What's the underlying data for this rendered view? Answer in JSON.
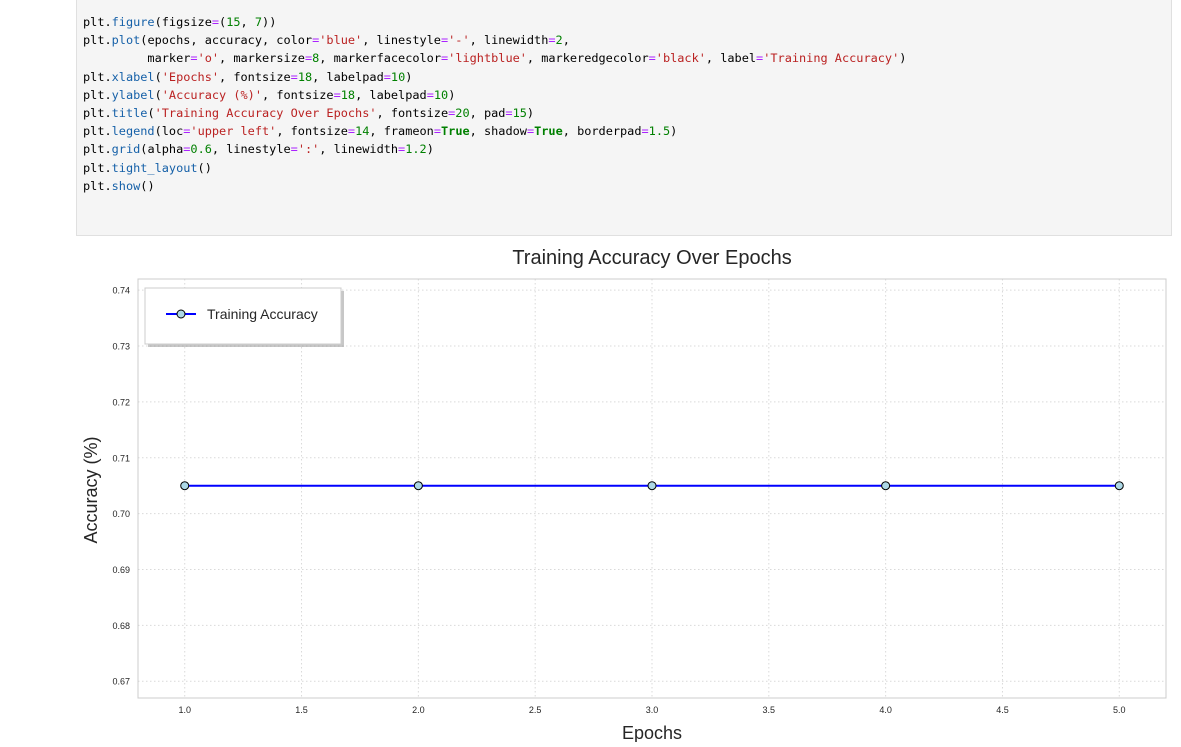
{
  "code_cell": {
    "lines": [
      [
        {
          "t": "plt.",
          "c": ""
        },
        {
          "t": "figure",
          "c": "fn"
        },
        {
          "t": "(figsize",
          "c": ""
        },
        {
          "t": "=",
          "c": "op"
        },
        {
          "t": "(",
          "c": ""
        },
        {
          "t": "15",
          "c": "num"
        },
        {
          "t": ", ",
          "c": ""
        },
        {
          "t": "7",
          "c": "num"
        },
        {
          "t": "))",
          "c": ""
        }
      ],
      [
        {
          "t": "plt.",
          "c": ""
        },
        {
          "t": "plot",
          "c": "fn"
        },
        {
          "t": "(epochs, accuracy, color",
          "c": ""
        },
        {
          "t": "=",
          "c": "op"
        },
        {
          "t": "'blue'",
          "c": "str"
        },
        {
          "t": ", linestyle",
          "c": ""
        },
        {
          "t": "=",
          "c": "op"
        },
        {
          "t": "'-'",
          "c": "str"
        },
        {
          "t": ", linewidth",
          "c": ""
        },
        {
          "t": "=",
          "c": "op"
        },
        {
          "t": "2",
          "c": "num"
        },
        {
          "t": ",",
          "c": ""
        }
      ],
      [
        {
          "t": "         marker",
          "c": ""
        },
        {
          "t": "=",
          "c": "op"
        },
        {
          "t": "'o'",
          "c": "str"
        },
        {
          "t": ", markersize",
          "c": ""
        },
        {
          "t": "=",
          "c": "op"
        },
        {
          "t": "8",
          "c": "num"
        },
        {
          "t": ", markerfacecolor",
          "c": ""
        },
        {
          "t": "=",
          "c": "op"
        },
        {
          "t": "'lightblue'",
          "c": "str"
        },
        {
          "t": ", markeredgecolor",
          "c": ""
        },
        {
          "t": "=",
          "c": "op"
        },
        {
          "t": "'black'",
          "c": "str"
        },
        {
          "t": ", label",
          "c": ""
        },
        {
          "t": "=",
          "c": "op"
        },
        {
          "t": "'Training Accuracy'",
          "c": "str"
        },
        {
          "t": ")",
          "c": ""
        }
      ],
      [
        {
          "t": "plt.",
          "c": ""
        },
        {
          "t": "xlabel",
          "c": "fn"
        },
        {
          "t": "(",
          "c": ""
        },
        {
          "t": "'Epochs'",
          "c": "str"
        },
        {
          "t": ", fontsize",
          "c": ""
        },
        {
          "t": "=",
          "c": "op"
        },
        {
          "t": "18",
          "c": "num"
        },
        {
          "t": ", labelpad",
          "c": ""
        },
        {
          "t": "=",
          "c": "op"
        },
        {
          "t": "10",
          "c": "num"
        },
        {
          "t": ")",
          "c": ""
        }
      ],
      [
        {
          "t": "plt.",
          "c": ""
        },
        {
          "t": "ylabel",
          "c": "fn"
        },
        {
          "t": "(",
          "c": ""
        },
        {
          "t": "'Accuracy (%)'",
          "c": "str"
        },
        {
          "t": ", fontsize",
          "c": ""
        },
        {
          "t": "=",
          "c": "op"
        },
        {
          "t": "18",
          "c": "num"
        },
        {
          "t": ", labelpad",
          "c": ""
        },
        {
          "t": "=",
          "c": "op"
        },
        {
          "t": "10",
          "c": "num"
        },
        {
          "t": ")",
          "c": ""
        }
      ],
      [
        {
          "t": "plt.",
          "c": ""
        },
        {
          "t": "title",
          "c": "fn"
        },
        {
          "t": "(",
          "c": ""
        },
        {
          "t": "'Training Accuracy Over Epochs'",
          "c": "str"
        },
        {
          "t": ", fontsize",
          "c": ""
        },
        {
          "t": "=",
          "c": "op"
        },
        {
          "t": "20",
          "c": "num"
        },
        {
          "t": ", pad",
          "c": ""
        },
        {
          "t": "=",
          "c": "op"
        },
        {
          "t": "15",
          "c": "num"
        },
        {
          "t": ")",
          "c": ""
        }
      ],
      [
        {
          "t": "plt.",
          "c": ""
        },
        {
          "t": "legend",
          "c": "fn"
        },
        {
          "t": "(loc",
          "c": ""
        },
        {
          "t": "=",
          "c": "op"
        },
        {
          "t": "'upper left'",
          "c": "str"
        },
        {
          "t": ", fontsize",
          "c": ""
        },
        {
          "t": "=",
          "c": "op"
        },
        {
          "t": "14",
          "c": "num"
        },
        {
          "t": ", frameon",
          "c": ""
        },
        {
          "t": "=",
          "c": "op"
        },
        {
          "t": "True",
          "c": "kw"
        },
        {
          "t": ", shadow",
          "c": ""
        },
        {
          "t": "=",
          "c": "op"
        },
        {
          "t": "True",
          "c": "kw"
        },
        {
          "t": ", borderpad",
          "c": ""
        },
        {
          "t": "=",
          "c": "op"
        },
        {
          "t": "1.5",
          "c": "num"
        },
        {
          "t": ")",
          "c": ""
        }
      ],
      [
        {
          "t": "plt.",
          "c": ""
        },
        {
          "t": "grid",
          "c": "fn"
        },
        {
          "t": "(alpha",
          "c": ""
        },
        {
          "t": "=",
          "c": "op"
        },
        {
          "t": "0.6",
          "c": "num"
        },
        {
          "t": ", linestyle",
          "c": ""
        },
        {
          "t": "=",
          "c": "op"
        },
        {
          "t": "':'",
          "c": "str"
        },
        {
          "t": ", linewidth",
          "c": ""
        },
        {
          "t": "=",
          "c": "op"
        },
        {
          "t": "1.2",
          "c": "num"
        },
        {
          "t": ")",
          "c": ""
        }
      ],
      [
        {
          "t": "plt.",
          "c": ""
        },
        {
          "t": "tight_layout",
          "c": "fn"
        },
        {
          "t": "()",
          "c": ""
        }
      ],
      [
        {
          "t": "plt.",
          "c": ""
        },
        {
          "t": "show",
          "c": "fn"
        },
        {
          "t": "()",
          "c": ""
        }
      ]
    ]
  },
  "chart_data": {
    "type": "line",
    "title": "Training Accuracy Over Epochs",
    "xlabel": "Epochs",
    "ylabel": "Accuracy (%)",
    "xlim": [
      0.8,
      5.2
    ],
    "ylim": [
      0.667,
      0.742
    ],
    "xticks": [
      1.0,
      1.5,
      2.0,
      2.5,
      3.0,
      3.5,
      4.0,
      4.5,
      5.0
    ],
    "xtick_labels": [
      "1.0",
      "1.5",
      "2.0",
      "2.5",
      "3.0",
      "3.5",
      "4.0",
      "4.5",
      "5.0"
    ],
    "yticks": [
      0.67,
      0.68,
      0.69,
      0.7,
      0.71,
      0.72,
      0.73,
      0.74
    ],
    "ytick_labels": [
      "0.67",
      "0.68",
      "0.69",
      "0.70",
      "0.71",
      "0.72",
      "0.73",
      "0.74"
    ],
    "grid": true,
    "legend_position": "top-left",
    "series": [
      {
        "name": "Training Accuracy",
        "x": [
          1,
          2,
          3,
          4,
          5
        ],
        "y": [
          0.705,
          0.705,
          0.705,
          0.705,
          0.705
        ],
        "color": "#0000ff",
        "marker_face": "#add8e6",
        "marker_edge": "#000000"
      }
    ]
  }
}
